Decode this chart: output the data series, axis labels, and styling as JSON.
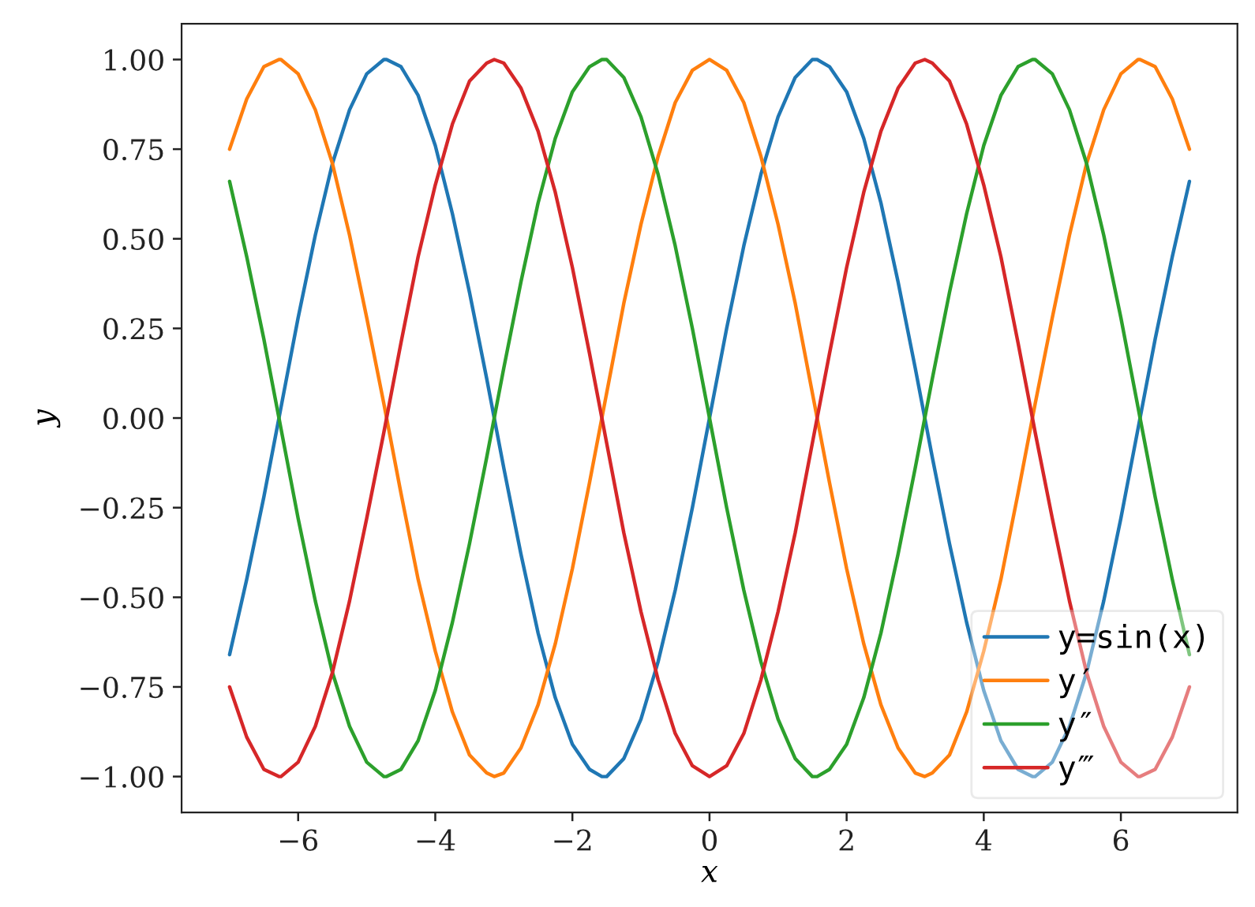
{
  "chart_data": {
    "type": "line",
    "xlabel": "x",
    "ylabel": "y",
    "x": [
      -7,
      -6.75,
      -6.5,
      -6.28,
      -6.25,
      -6,
      -5.75,
      -5.5,
      -5.25,
      -5,
      -4.75,
      -4.71,
      -4.5,
      -4.25,
      -4,
      -3.75,
      -3.5,
      -3.25,
      -3.14,
      -3,
      -2.75,
      -2.5,
      -2.25,
      -2,
      -1.75,
      -1.57,
      -1.5,
      -1.25,
      -1,
      -0.75,
      -0.5,
      -0.25,
      0,
      0.25,
      0.5,
      0.75,
      1,
      1.25,
      1.5,
      1.57,
      1.75,
      2,
      2.25,
      2.5,
      2.75,
      3,
      3.14,
      3.25,
      3.5,
      3.75,
      4,
      4.25,
      4.5,
      4.71,
      4.75,
      5,
      5.25,
      5.5,
      5.75,
      6,
      6.25,
      6.28,
      6.5,
      6.75,
      7
    ],
    "series": [
      {
        "name": "y=sin(x)",
        "color": "#1f77b4",
        "values": [
          -0.66,
          -0.45,
          -0.22,
          0.0,
          0.03,
          0.28,
          0.51,
          0.71,
          0.86,
          0.96,
          1.0,
          1.0,
          0.98,
          0.9,
          0.76,
          0.57,
          0.35,
          0.11,
          0.0,
          -0.14,
          -0.38,
          -0.6,
          -0.78,
          -0.91,
          -0.98,
          -1.0,
          -1.0,
          -0.95,
          -0.84,
          -0.68,
          -0.48,
          -0.25,
          0.0,
          0.25,
          0.48,
          0.68,
          0.84,
          0.95,
          1.0,
          1.0,
          0.98,
          0.91,
          0.78,
          0.6,
          0.38,
          0.14,
          0.0,
          -0.11,
          -0.35,
          -0.57,
          -0.76,
          -0.9,
          -0.98,
          -1.0,
          -1.0,
          -0.96,
          -0.86,
          -0.71,
          -0.51,
          -0.28,
          -0.03,
          0.0,
          0.22,
          0.45,
          0.66
        ]
      },
      {
        "name": "y′",
        "color": "#ff7f0e",
        "values": [
          0.75,
          0.89,
          0.98,
          1.0,
          1.0,
          0.96,
          0.86,
          0.71,
          0.51,
          0.28,
          0.04,
          0.0,
          -0.21,
          -0.45,
          -0.65,
          -0.82,
          -0.94,
          -0.99,
          -1.0,
          -0.99,
          -0.92,
          -0.8,
          -0.63,
          -0.42,
          -0.18,
          0.0,
          0.07,
          0.32,
          0.54,
          0.73,
          0.88,
          0.97,
          1.0,
          0.97,
          0.88,
          0.73,
          0.54,
          0.32,
          0.07,
          0.0,
          -0.18,
          -0.42,
          -0.63,
          -0.8,
          -0.92,
          -0.99,
          -1.0,
          -0.99,
          -0.94,
          -0.82,
          -0.65,
          -0.45,
          -0.21,
          0.0,
          0.04,
          0.28,
          0.51,
          0.71,
          0.86,
          0.96,
          1.0,
          1.0,
          0.98,
          0.89,
          0.75
        ]
      },
      {
        "name": "y″",
        "color": "#2ca02c",
        "values": [
          0.66,
          0.45,
          0.22,
          0.0,
          -0.03,
          -0.28,
          -0.51,
          -0.71,
          -0.86,
          -0.96,
          -1.0,
          -1.0,
          -0.98,
          -0.9,
          -0.76,
          -0.57,
          -0.35,
          -0.11,
          0.0,
          0.14,
          0.38,
          0.6,
          0.78,
          0.91,
          0.98,
          1.0,
          1.0,
          0.95,
          0.84,
          0.68,
          0.48,
          0.25,
          0.0,
          -0.25,
          -0.48,
          -0.68,
          -0.84,
          -0.95,
          -1.0,
          -1.0,
          -0.98,
          -0.91,
          -0.78,
          -0.6,
          -0.38,
          -0.14,
          0.0,
          0.11,
          0.35,
          0.57,
          0.76,
          0.9,
          0.98,
          1.0,
          1.0,
          0.96,
          0.86,
          0.71,
          0.51,
          0.28,
          0.03,
          0.0,
          -0.22,
          -0.45,
          -0.66
        ]
      },
      {
        "name": "y‴",
        "color": "#d62728",
        "values": [
          -0.75,
          -0.89,
          -0.98,
          -1.0,
          -1.0,
          -0.96,
          -0.86,
          -0.71,
          -0.51,
          -0.28,
          -0.04,
          0.0,
          0.21,
          0.45,
          0.65,
          0.82,
          0.94,
          0.99,
          1.0,
          0.99,
          0.92,
          0.8,
          0.63,
          0.42,
          0.18,
          0.0,
          -0.07,
          -0.32,
          -0.54,
          -0.73,
          -0.88,
          -0.97,
          -1.0,
          -0.97,
          -0.88,
          -0.73,
          -0.54,
          -0.32,
          -0.07,
          0.0,
          0.18,
          0.42,
          0.63,
          0.8,
          0.92,
          0.99,
          1.0,
          0.99,
          0.94,
          0.82,
          0.65,
          0.45,
          0.21,
          0.0,
          -0.04,
          -0.28,
          -0.51,
          -0.71,
          -0.86,
          -0.96,
          -1.0,
          -1.0,
          -0.98,
          -0.89,
          -0.75
        ]
      }
    ],
    "xlim": [
      -7.7,
      7.7
    ],
    "ylim": [
      -1.1,
      1.1
    ],
    "xticks": [
      {
        "value": -6,
        "label": "−6"
      },
      {
        "value": -4,
        "label": "−4"
      },
      {
        "value": -2,
        "label": "−2"
      },
      0,
      2,
      4,
      6
    ],
    "yticks": [
      {
        "value": -1,
        "label": "−1.00"
      },
      {
        "value": -0.75,
        "label": "−0.75"
      },
      {
        "value": -0.5,
        "label": "−0.50"
      },
      {
        "value": -0.25,
        "label": "−0.25"
      },
      {
        "value": 0,
        "label": "0.00"
      },
      {
        "value": 0.25,
        "label": "0.25"
      },
      {
        "value": 0.5,
        "label": "0.50"
      },
      {
        "value": 0.75,
        "label": "0.75"
      },
      {
        "value": 1,
        "label": "1.00"
      }
    ],
    "legend": "bottom right",
    "line_style": "solid"
  }
}
